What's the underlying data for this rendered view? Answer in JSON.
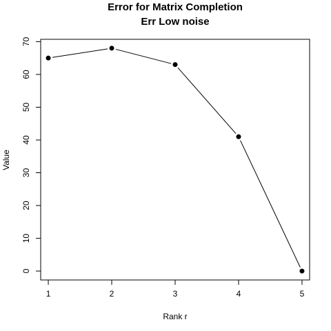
{
  "chart_data": {
    "type": "line",
    "title": "Error for Matrix Completion",
    "subtitle": "Err Low noise",
    "xlabel": "Rank r",
    "ylabel": "Value",
    "x": [
      1,
      2,
      3,
      4,
      5
    ],
    "values": [
      65,
      68,
      63,
      41,
      0
    ],
    "xlim": [
      0.88,
      5.12
    ],
    "ylim": [
      -2.72,
      70.72
    ],
    "xticks": [
      "1",
      "2",
      "3",
      "4",
      "5"
    ],
    "yticks": [
      "0",
      "10",
      "20",
      "30",
      "40",
      "50",
      "60",
      "70"
    ],
    "grid": false,
    "marker": "filled-circle",
    "line_color": "#000000"
  }
}
